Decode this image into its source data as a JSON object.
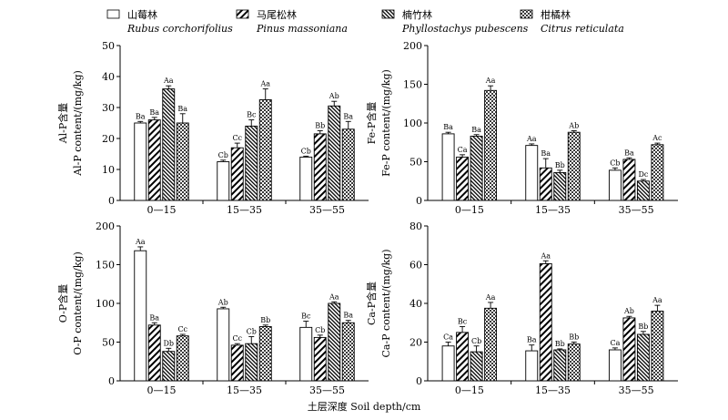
{
  "legend": [
    {
      "name_zh": "山莓林",
      "name_latin": "Rubus corchorifolius",
      "pattern": "white"
    },
    {
      "name_zh": "马尾松林",
      "name_latin": "Pinus massoniana",
      "pattern": "hatch-wide"
    },
    {
      "name_zh": "楠竹林",
      "name_latin": "Phyllostachys pubescens",
      "pattern": "hatch-dense"
    },
    {
      "name_zh": "柑橘林",
      "name_latin": "Citrus reticulata",
      "pattern": "cross"
    }
  ],
  "x_axis_title": "土层深度  Soil depth/cm",
  "chart_data": [
    {
      "type": "bar",
      "ylabel_zh": "Al-P含量",
      "ylabel_en": "Al-P content/(mg/kg)",
      "ylim": [
        0,
        50
      ],
      "yticks": [
        "0",
        "10",
        "20",
        "30",
        "40",
        "50"
      ],
      "categories": [
        "0—15",
        "15—35",
        "35—55"
      ],
      "series": [
        {
          "values": [
            25,
            12.5,
            14
          ],
          "errors": [
            0.5,
            0.5,
            0.3
          ],
          "labels": [
            "Ba",
            "Cb",
            "Cb"
          ]
        },
        {
          "values": [
            26,
            17,
            21.5
          ],
          "errors": [
            0.8,
            1.5,
            1
          ],
          "labels": [
            "Ba",
            "Cc",
            "Bb"
          ]
        },
        {
          "values": [
            36,
            24,
            30.5
          ],
          "errors": [
            1,
            2,
            1.5
          ],
          "labels": [
            "Aa",
            "Bc",
            "Ab"
          ]
        },
        {
          "values": [
            25,
            32.5,
            23
          ],
          "errors": [
            3,
            3.5,
            2.5
          ],
          "labels": [
            "Ba",
            "Aa",
            "Ba"
          ]
        }
      ]
    },
    {
      "type": "bar",
      "ylabel_zh": "Fe-P含量",
      "ylabel_en": "Fe-P content/(mg/kg)",
      "ylim": [
        0,
        200
      ],
      "yticks": [
        "0",
        "50",
        "100",
        "150",
        "200"
      ],
      "categories": [
        "0—15",
        "15—35",
        "35—55"
      ],
      "series": [
        {
          "values": [
            86,
            71,
            39
          ],
          "errors": [
            2,
            2,
            3
          ],
          "labels": [
            "Ba",
            "Aa",
            "Cb"
          ]
        },
        {
          "values": [
            56,
            42,
            53
          ],
          "errors": [
            3,
            12,
            2
          ],
          "labels": [
            "Ca",
            "Ba",
            "Ba"
          ]
        },
        {
          "values": [
            83,
            36,
            25
          ],
          "errors": [
            2,
            3,
            2
          ],
          "labels": [
            "Ba",
            "Bb",
            "Dc"
          ]
        },
        {
          "values": [
            142,
            88,
            72
          ],
          "errors": [
            6,
            2,
            2
          ],
          "labels": [
            "Aa",
            "Ab",
            "Ac"
          ]
        }
      ]
    },
    {
      "type": "bar",
      "ylabel_zh": "O-P含量",
      "ylabel_en": "O-P content/(mg/kg)",
      "ylim": [
        0,
        200
      ],
      "yticks": [
        "0",
        "50",
        "100",
        "150",
        "200"
      ],
      "categories": [
        "0—15",
        "15—35",
        "35—55"
      ],
      "series": [
        {
          "values": [
            168,
            93,
            69
          ],
          "errors": [
            5,
            2,
            8
          ],
          "labels": [
            "Aa",
            "Ab",
            "Bc"
          ]
        },
        {
          "values": [
            72,
            46,
            56
          ],
          "errors": [
            3,
            2,
            3
          ],
          "labels": [
            "Ba",
            "Cc",
            "Cb"
          ]
        },
        {
          "values": [
            38,
            48,
            100
          ],
          "errors": [
            4,
            9,
            2
          ],
          "labels": [
            "Db",
            "Cb",
            "Aa"
          ]
        },
        {
          "values": [
            58,
            70,
            75
          ],
          "errors": [
            2,
            2,
            3
          ],
          "labels": [
            "Cc",
            "Bb",
            "Ba"
          ]
        }
      ]
    },
    {
      "type": "bar",
      "ylabel_zh": "Ca-P含量",
      "ylabel_en": "Ca-P content/(mg/kg)",
      "ylim": [
        0,
        80
      ],
      "yticks": [
        "0",
        "20",
        "40",
        "60",
        "80"
      ],
      "categories": [
        "0—15",
        "15—35",
        "35—55"
      ],
      "series": [
        {
          "values": [
            18,
            15.5,
            16
          ],
          "errors": [
            2,
            3,
            1
          ],
          "labels": [
            "Ca",
            "Ba",
            "Ca"
          ]
        },
        {
          "values": [
            25,
            60.5,
            32.5
          ],
          "errors": [
            3,
            1.5,
            0.8
          ],
          "labels": [
            "Bc",
            "Aa",
            "Ab"
          ]
        },
        {
          "values": [
            15,
            16,
            24
          ],
          "errors": [
            3,
            0.5,
            1.5
          ],
          "labels": [
            "Cb",
            "Bb",
            "Bb"
          ]
        },
        {
          "values": [
            37.5,
            19,
            36
          ],
          "errors": [
            3,
            1,
            3
          ],
          "labels": [
            "Aa",
            "Bb",
            "Aa"
          ]
        }
      ]
    }
  ]
}
